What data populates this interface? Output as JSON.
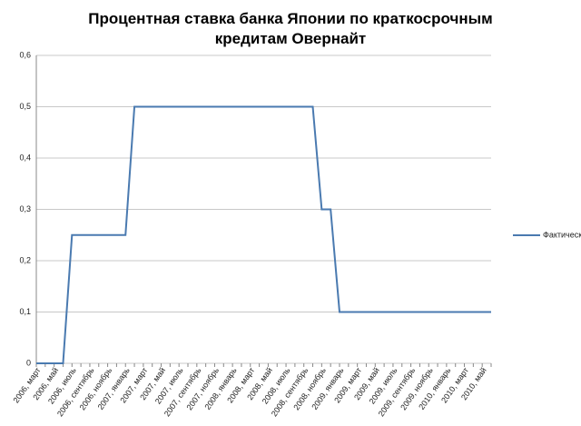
{
  "chart_data": {
    "type": "line",
    "title": "Процентная ставка банка Японии по краткосрочным кредитам Овернайт",
    "categories": [
      "2006, март",
      null,
      "2006, май",
      null,
      "2006, июль",
      null,
      "2006, сентябрь",
      null,
      "2006, ноябрь",
      null,
      "2007, январь",
      null,
      "2007, март",
      null,
      "2007, май",
      null,
      "2007, июль",
      null,
      "2007, сентябрь",
      null,
      "2007, ноябрь",
      null,
      "2008, январь",
      null,
      "2008, март",
      null,
      "2008, май",
      null,
      "2008, июль",
      null,
      "2008, сентябрь",
      null,
      "2008, ноябрь",
      null,
      "2009, январь",
      null,
      "2009, март",
      null,
      "2009, май",
      null,
      "2009, июль",
      null,
      "2009, сентябрь",
      null,
      "2009, ноябрь",
      null,
      "2010, январь",
      null,
      "2010, март",
      null,
      "2010, май",
      null
    ],
    "series": [
      {
        "name": "Фактически",
        "color": "#4a7ab0",
        "values": [
          0,
          0,
          0,
          0,
          0.25,
          0.25,
          0.25,
          0.25,
          0.25,
          0.25,
          0.25,
          0.5,
          0.5,
          0.5,
          0.5,
          0.5,
          0.5,
          0.5,
          0.5,
          0.5,
          0.5,
          0.5,
          0.5,
          0.5,
          0.5,
          0.5,
          0.5,
          0.5,
          0.5,
          0.5,
          0.5,
          0.5,
          0.3,
          0.3,
          0.1,
          0.1,
          0.1,
          0.1,
          0.1,
          0.1,
          0.1,
          0.1,
          0.1,
          0.1,
          0.1,
          0.1,
          0.1,
          0.1,
          0.1,
          0.1,
          0.1,
          0.1
        ]
      }
    ],
    "ylim": [
      0,
      0.6
    ],
    "yticks": [
      {
        "value": 0,
        "label": "0"
      },
      {
        "value": 0.1,
        "label": "0,1"
      },
      {
        "value": 0.2,
        "label": "0,2"
      },
      {
        "value": 0.3,
        "label": "0,3"
      },
      {
        "value": 0.4,
        "label": "0,4"
      },
      {
        "value": 0.5,
        "label": "0,5"
      },
      {
        "value": 0.6,
        "label": "0,6"
      }
    ],
    "grid": true,
    "legend": "right"
  }
}
